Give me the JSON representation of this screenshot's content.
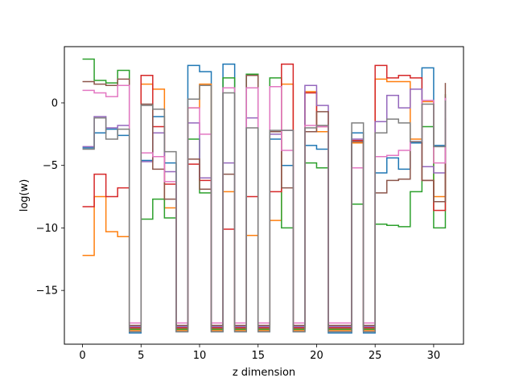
{
  "chart_data": {
    "type": "line",
    "step": "post",
    "title": "",
    "xlabel": "z dimension",
    "ylabel": "log(w)",
    "xlim": [
      -1.55,
      32.55
    ],
    "ylim": [
      -19.3,
      4.5
    ],
    "xticks": [
      0,
      5,
      10,
      15,
      20,
      25,
      30
    ],
    "yticks": [
      -15,
      -10,
      -5,
      0
    ],
    "grid": false,
    "x": [
      0,
      1,
      2,
      3,
      4,
      5,
      6,
      7,
      8,
      9,
      10,
      11,
      12,
      13,
      14,
      15,
      16,
      17,
      18,
      19,
      20,
      21,
      22,
      23,
      24,
      25,
      26,
      27,
      28,
      29,
      30,
      31
    ],
    "series": [
      {
        "color": "#1f77b4",
        "values": [
          -3.6,
          -2.4,
          -2.1,
          -2.6,
          -18.4,
          -4.6,
          -1.1,
          -4.8,
          -18.3,
          3.0,
          2.5,
          -18.3,
          3.1,
          -18.3,
          2.3,
          -18.3,
          -2.9,
          -5.0,
          -18.3,
          -3.4,
          -3.7,
          -18.4,
          -18.4,
          -2.4,
          -18.4,
          -5.6,
          -4.4,
          -5.3,
          -3.2,
          2.8,
          -3.4,
          -3.2
        ]
      },
      {
        "color": "#ff7f0e",
        "values": [
          -12.2,
          -7.5,
          -10.3,
          -10.7,
          -18.2,
          1.5,
          1.1,
          -8.4,
          -18.2,
          -0.4,
          1.5,
          -18.2,
          -7.1,
          -18.2,
          -10.6,
          -18.2,
          -9.4,
          1.5,
          -18.2,
          0.9,
          -2.3,
          -18.2,
          -18.2,
          -3.2,
          -18.2,
          1.9,
          1.7,
          1.7,
          -2.9,
          0.1,
          -7.5,
          -3.6
        ]
      },
      {
        "color": "#2ca02c",
        "values": [
          3.5,
          1.8,
          1.6,
          2.6,
          -18.1,
          -9.3,
          -7.7,
          -9.2,
          -18.1,
          -2.9,
          -7.2,
          -18.1,
          2.0,
          -18.1,
          2.3,
          -18.1,
          2.0,
          -10.0,
          -18.1,
          -4.8,
          -5.2,
          -18.1,
          -18.1,
          -8.1,
          -18.1,
          -9.7,
          -9.8,
          -9.9,
          -7.1,
          -1.9,
          -10.0,
          0.7
        ]
      },
      {
        "color": "#d62728",
        "values": [
          -8.3,
          -5.7,
          -7.5,
          -6.8,
          -18.0,
          2.2,
          -1.9,
          -6.5,
          -18.0,
          -4.9,
          -6.2,
          -18.0,
          -10.1,
          -18.0,
          -7.5,
          -18.0,
          -7.1,
          3.1,
          -18.0,
          0.8,
          -1.9,
          -18.0,
          -18.0,
          -3.0,
          -18.0,
          3.0,
          2.0,
          2.2,
          2.0,
          -6.2,
          -8.6,
          -1.2
        ]
      },
      {
        "color": "#9467bd",
        "values": [
          -3.5,
          -1.1,
          -2.0,
          -1.8,
          -17.9,
          -4.7,
          -2.4,
          -5.5,
          -17.9,
          -1.6,
          -6.0,
          -17.9,
          -4.8,
          -17.9,
          -1.2,
          -17.9,
          -2.5,
          -2.2,
          -17.9,
          1.4,
          -0.2,
          -17.9,
          -17.9,
          -2.9,
          -17.9,
          -1.5,
          0.6,
          -0.4,
          1.1,
          -5.1,
          -5.6,
          0.5
        ]
      },
      {
        "color": "#8c564b",
        "values": [
          1.7,
          1.5,
          1.4,
          1.9,
          -17.8,
          -0.1,
          -5.3,
          -7.7,
          -17.8,
          -4.5,
          -6.9,
          -17.8,
          -5.7,
          -17.8,
          2.2,
          -17.8,
          -2.3,
          -6.8,
          -17.8,
          -2.3,
          -0.7,
          -17.8,
          -17.8,
          -3.1,
          -17.8,
          -7.2,
          -6.2,
          -6.1,
          -3.1,
          -6.2,
          -7.9,
          1.6
        ]
      },
      {
        "color": "#e377c2",
        "values": [
          1.0,
          0.8,
          0.5,
          1.4,
          -17.6,
          -4.0,
          -4.3,
          -6.3,
          -17.6,
          -0.4,
          -2.5,
          -17.6,
          1.2,
          -17.6,
          1.2,
          -17.6,
          1.3,
          -3.8,
          -17.6,
          -1.8,
          -1.9,
          -17.6,
          -17.6,
          -5.2,
          -17.6,
          -4.3,
          -4.2,
          -3.8,
          -3.1,
          0.2,
          -4.8,
          0.4
        ]
      },
      {
        "color": "#7f7f7f",
        "values": [
          -3.7,
          -1.2,
          -2.9,
          -2.1,
          -18.3,
          -0.2,
          -0.5,
          -3.9,
          -18.3,
          0.3,
          1.4,
          -18.3,
          0.8,
          -18.3,
          -2.0,
          -18.3,
          -2.2,
          -2.2,
          -18.3,
          -2.0,
          -1.8,
          -18.3,
          -18.3,
          -1.6,
          -18.3,
          -2.4,
          -1.3,
          -1.6,
          -3.1,
          -0.1,
          -3.5,
          0.2
        ]
      }
    ]
  }
}
